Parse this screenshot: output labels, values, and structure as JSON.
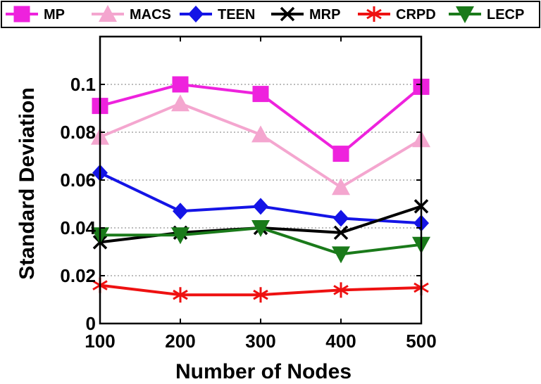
{
  "chart_data": {
    "type": "line",
    "title": "",
    "xlabel": "Number of Nodes",
    "ylabel": "Standard Deviation",
    "x": [
      100,
      200,
      300,
      400,
      500
    ],
    "x_tick_labels": [
      "100",
      "200",
      "300",
      "400",
      "500"
    ],
    "xlim": [
      100,
      500
    ],
    "ylim": [
      0,
      0.12
    ],
    "y_ticks": [
      0,
      0.02,
      0.04,
      0.06,
      0.08,
      0.1
    ],
    "y_tick_labels": [
      "0",
      "0.02",
      "0.04",
      "0.06",
      "0.08",
      "0.1"
    ],
    "grid": "y-dotted",
    "legend_position": "top",
    "series": [
      {
        "name": "MP",
        "color": "#ee22dd",
        "marker": "square",
        "values": [
          0.091,
          0.1,
          0.096,
          0.071,
          0.099
        ]
      },
      {
        "name": "MACS",
        "color": "#f4a6cf",
        "marker": "triangle-up",
        "values": [
          0.078,
          0.092,
          0.079,
          0.057,
          0.077
        ]
      },
      {
        "name": "TEEN",
        "color": "#1414e6",
        "marker": "diamond",
        "values": [
          0.063,
          0.047,
          0.049,
          0.044,
          0.042
        ]
      },
      {
        "name": "MRP",
        "color": "#000000",
        "marker": "x",
        "values": [
          0.034,
          0.038,
          0.04,
          0.038,
          0.049
        ]
      },
      {
        "name": "CRPD",
        "color": "#ee1111",
        "marker": "asterisk",
        "values": [
          0.016,
          0.012,
          0.012,
          0.014,
          0.015
        ]
      },
      {
        "name": "LECP",
        "color": "#1a7a1a",
        "marker": "triangle-down",
        "values": [
          0.037,
          0.037,
          0.04,
          0.029,
          0.033
        ]
      }
    ]
  }
}
